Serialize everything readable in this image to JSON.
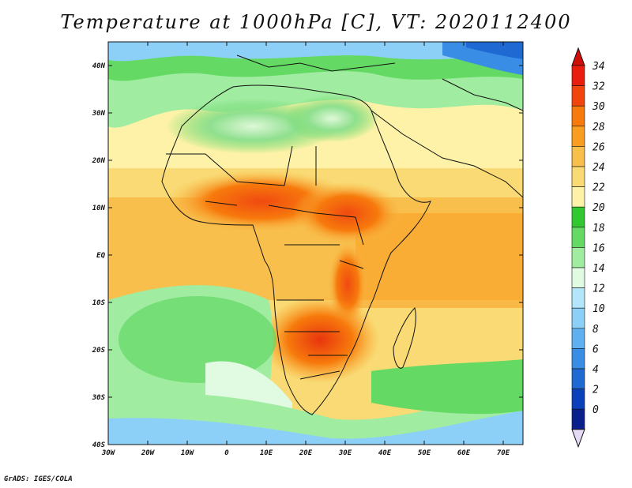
{
  "title": "Temperature at 1000hPa [C], VT: 2020112400",
  "credit": "GrADS: IGES/COLA",
  "map": {
    "lon_range": [
      -30,
      75
    ],
    "lat_range": [
      -40,
      45
    ],
    "lon_ticks": [
      "30W",
      "20W",
      "10W",
      "0",
      "10E",
      "20E",
      "30E",
      "40E",
      "50E",
      "60E",
      "70E"
    ],
    "lat_ticks": [
      "40N",
      "30N",
      "20N",
      "10N",
      "EQ",
      "10S",
      "20S",
      "30S",
      "40S"
    ]
  },
  "colorbar": {
    "labels": [
      "34",
      "32",
      "30",
      "28",
      "26",
      "24",
      "22",
      "20",
      "18",
      "16",
      "14",
      "12",
      "10",
      "8",
      "6",
      "4",
      "2",
      "0"
    ],
    "colors": [
      "#e81e0e",
      "#f2450e",
      "#f77a0c",
      "#fa9e22",
      "#f8bf4c",
      "#f9da74",
      "#fdf2a8",
      "#32c832",
      "#64d964",
      "#a0eca0",
      "#e0fbe2",
      "#b4e6fa",
      "#8cd0f8",
      "#5fb0f0",
      "#3a8de4",
      "#1e6ad2",
      "#0a41ba",
      "#0a1e8c"
    ],
    "top_arrow_color": "#d00e0a",
    "bottom_arrow_color": "#e4daf6"
  }
}
